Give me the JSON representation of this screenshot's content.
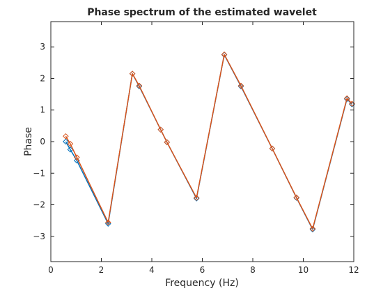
{
  "chart_data": {
    "type": "line",
    "title": "Phase spectrum of the estimated wavelet",
    "xlabel": "Frequency (Hz)",
    "ylabel": "Phase",
    "xlim": [
      0,
      12
    ],
    "ylim": [
      -3.8,
      3.8
    ],
    "xticks": [
      "0",
      "2",
      "4",
      "6",
      "8",
      "10",
      "12"
    ],
    "yticks": [
      "3",
      "2",
      "1",
      "0",
      "−1",
      "−2",
      "−3"
    ],
    "grid": false,
    "legend": "none",
    "series": [
      {
        "color": "#0072BD",
        "marker": "diamond",
        "x": [
          0.59,
          0.77,
          1.03,
          2.27,
          3.23,
          3.5,
          4.35,
          4.6,
          5.77,
          6.87,
          7.53,
          8.77,
          9.73,
          10.37,
          11.73,
          11.93
        ],
        "y": [
          0.0,
          -0.25,
          -0.6,
          -2.6,
          2.15,
          1.75,
          0.38,
          -0.02,
          -1.8,
          2.75,
          1.75,
          -0.22,
          -1.78,
          -2.78,
          1.35,
          1.18
        ]
      },
      {
        "color": "#D95319",
        "marker": "diamond",
        "x": [
          0.59,
          0.77,
          1.03,
          2.27,
          3.23,
          3.5,
          4.35,
          4.6,
          5.77,
          6.87,
          7.53,
          8.77,
          9.73,
          10.37,
          11.73,
          11.93
        ],
        "y": [
          0.17,
          -0.07,
          -0.5,
          -2.56,
          2.15,
          1.77,
          0.38,
          -0.02,
          -1.78,
          2.76,
          1.77,
          -0.22,
          -1.77,
          -2.76,
          1.37,
          1.2
        ]
      }
    ]
  }
}
